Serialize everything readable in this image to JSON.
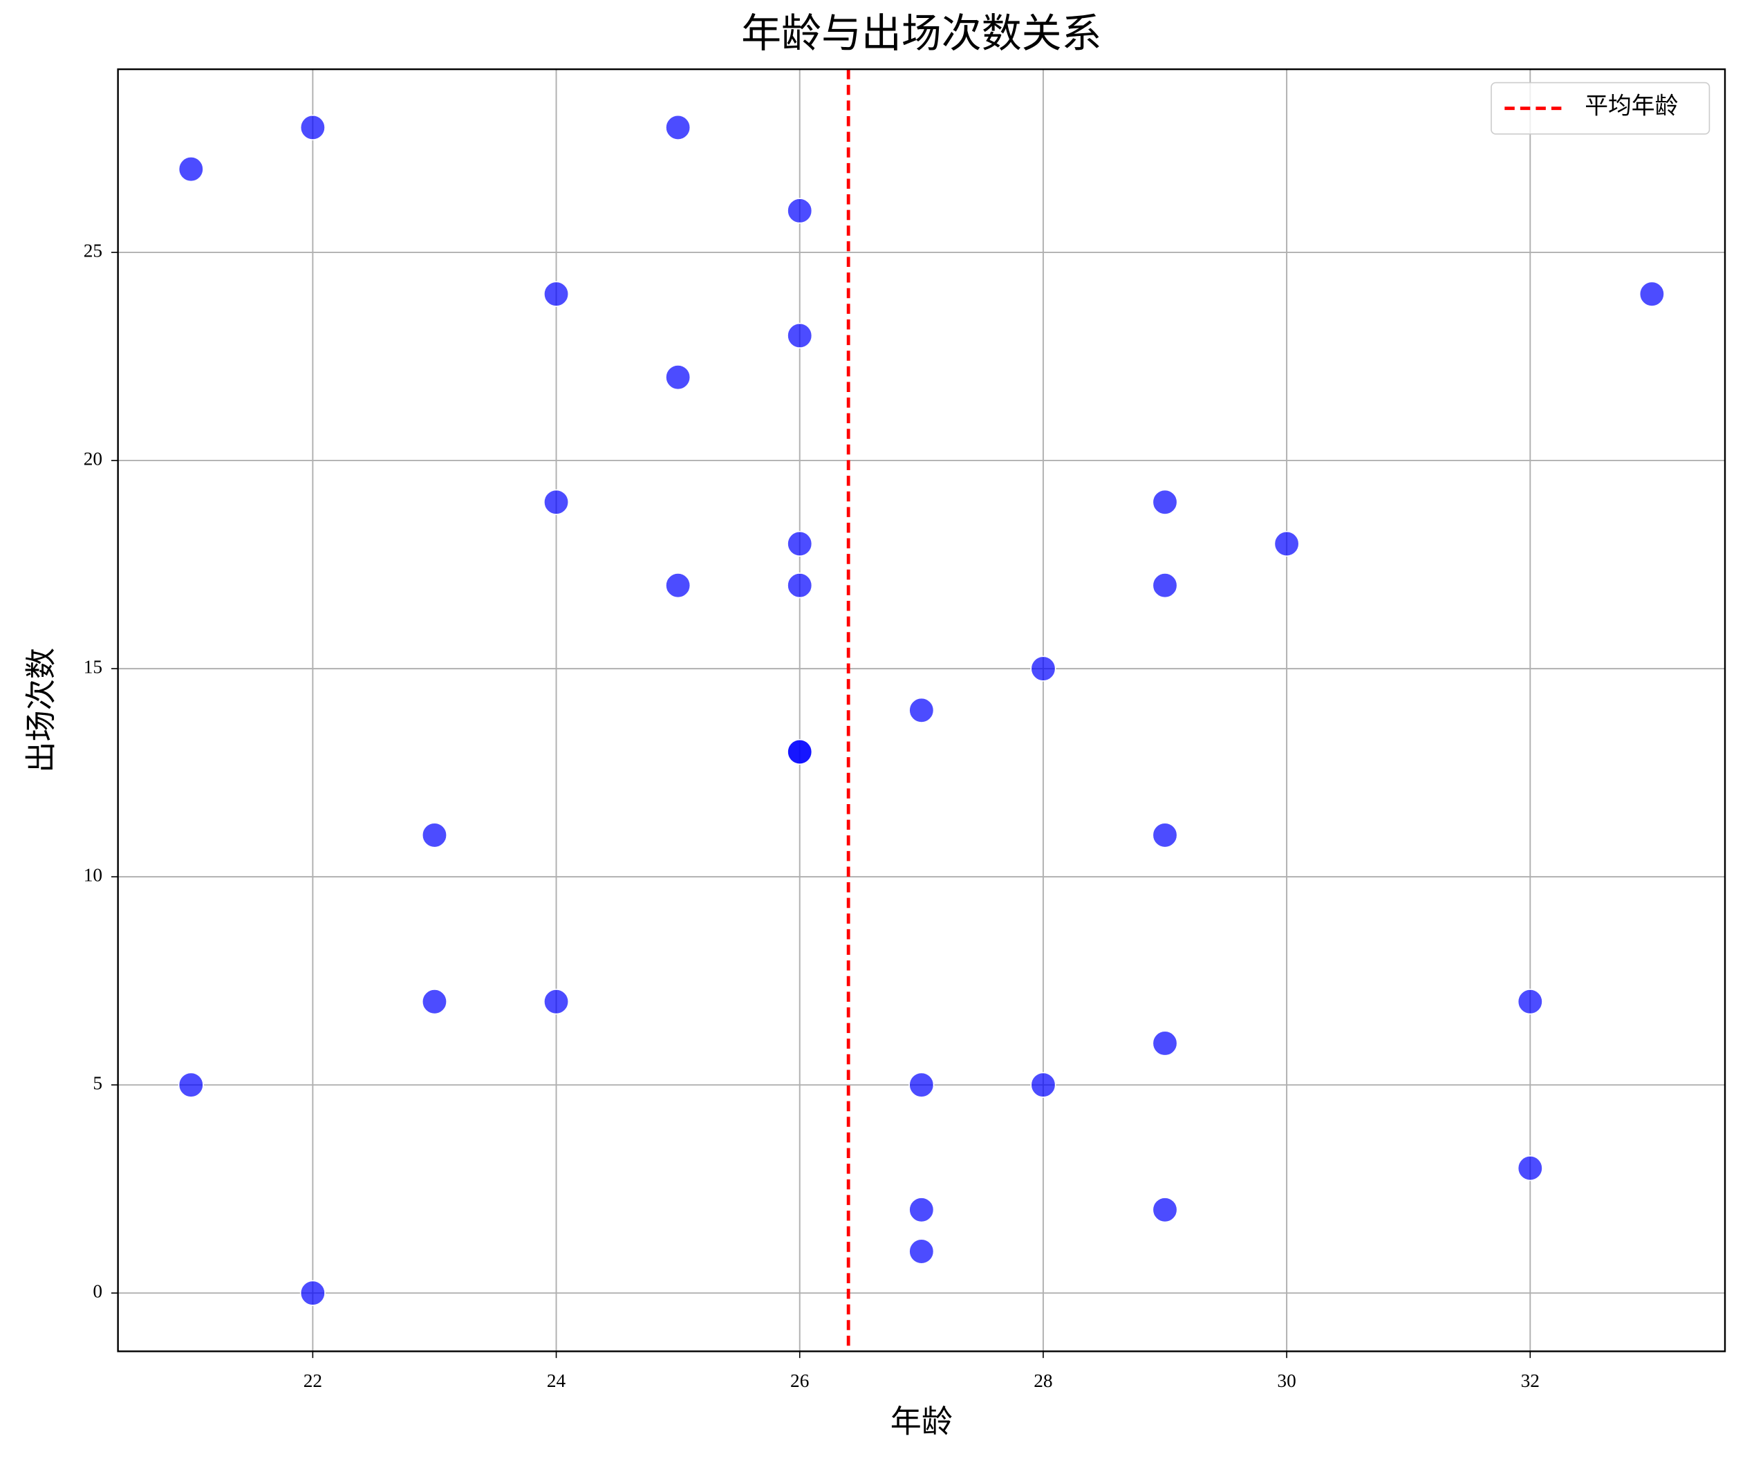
{
  "chart_data": {
    "type": "scatter",
    "title": "年龄与出场次数关系",
    "xlabel": "年龄",
    "ylabel": "出场次数",
    "x": [
      21,
      22,
      25,
      26,
      24,
      33,
      26,
      25,
      24,
      29,
      26,
      30,
      25,
      26,
      29,
      28,
      27,
      26,
      26,
      23,
      29,
      23,
      24,
      32,
      29,
      21,
      27,
      28,
      32,
      27,
      29,
      27,
      22
    ],
    "y": [
      27,
      28,
      28,
      26,
      24,
      24,
      23,
      22,
      19,
      19,
      18,
      18,
      17,
      17,
      17,
      15,
      14,
      13,
      13,
      11,
      11,
      7,
      7,
      7,
      6,
      5,
      5,
      5,
      3,
      2,
      2,
      1,
      0
    ],
    "color": "blue",
    "mean_line": {
      "value": 26.4,
      "label": "平均年龄",
      "color": "red"
    },
    "xlim": [
      20.4,
      33.6
    ],
    "ylim": [
      -1.4,
      29.4
    ],
    "xticks": [
      22,
      24,
      26,
      28,
      30,
      32
    ],
    "yticks": [
      0,
      5,
      10,
      15,
      20,
      25
    ],
    "grid": true,
    "legend": "upper right"
  }
}
